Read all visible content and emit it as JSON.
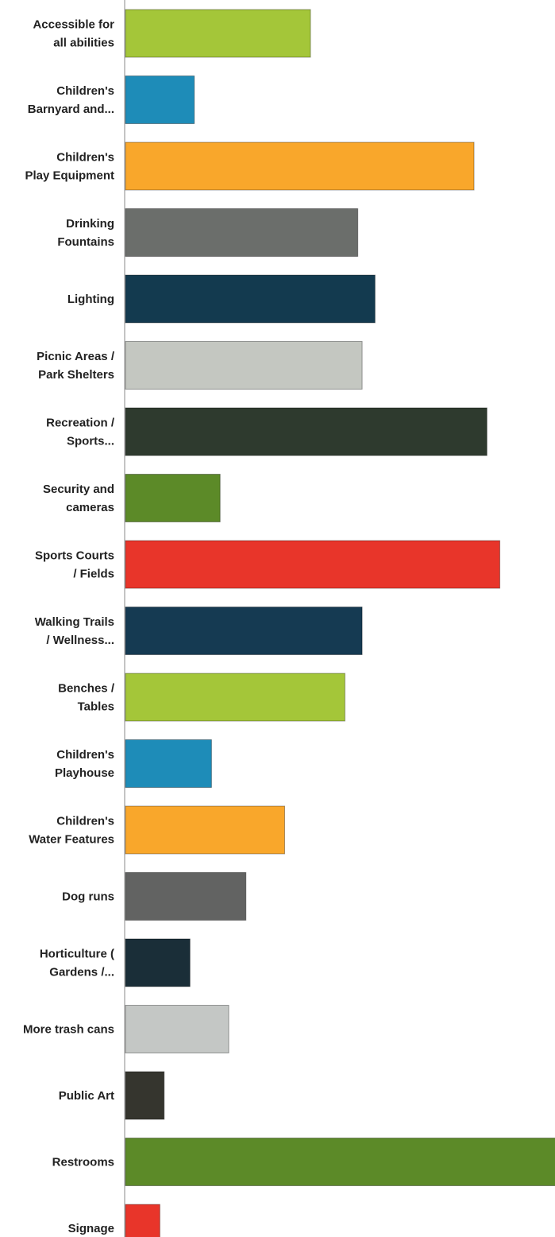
{
  "chart_data": {
    "type": "bar",
    "orientation": "horizontal",
    "title": "",
    "xlabel": "",
    "ylabel": "",
    "xlim": [
      0,
      100
    ],
    "grid": false,
    "legend": "none",
    "categories": [
      "Accessible for all abilities",
      "Children's Barnyard and...",
      "Children's Play Equipment",
      "Drinking Fountains",
      "Lighting",
      "Picnic Areas / Park Shelters",
      "Recreation / Sports...",
      "Security and cameras",
      "Sports Courts / Fields",
      "Walking Trails / Wellness...",
      "Benches / Tables",
      "Children's Playhouse",
      "Children's Water Features",
      "Dog runs",
      "Horticulture ( Gardens /...",
      "More trash cans",
      "Public Art",
      "Restrooms",
      "Signage"
    ],
    "labels": [
      [
        "Accessible for",
        "all abilities"
      ],
      [
        "Children's",
        "Barnyard and..."
      ],
      [
        "Children's",
        "Play Equipment"
      ],
      [
        "Drinking",
        "Fountains"
      ],
      [
        "Lighting"
      ],
      [
        "Picnic Areas /",
        "Park Shelters"
      ],
      [
        "Recreation /",
        "Sports..."
      ],
      [
        "Security and",
        "cameras"
      ],
      [
        "Sports Courts",
        "/ Fields"
      ],
      [
        "Walking Trails",
        "/ Wellness..."
      ],
      [
        "Benches /",
        "Tables"
      ],
      [
        "Children's",
        "Playhouse"
      ],
      [
        "Children's",
        "Water Features"
      ],
      [
        "Dog runs"
      ],
      [
        "Horticulture (",
        "Gardens /..."
      ],
      [
        "More trash cans"
      ],
      [
        "Public Art"
      ],
      [
        "Restrooms"
      ],
      [
        "Signage"
      ]
    ],
    "values": [
      43,
      16,
      81,
      54,
      58,
      55,
      84,
      22,
      87,
      55,
      51,
      20,
      37,
      28,
      15,
      24,
      9,
      100,
      8
    ],
    "colors": [
      "#a4c639",
      "#1e8cb8",
      "#f9a72b",
      "#6b6e6b",
      "#133a4f",
      "#c4c7c1",
      "#2e3a2e",
      "#5c8a28",
      "#e8352a",
      "#153a52",
      "#a4c639",
      "#1e8cb8",
      "#f9a72b",
      "#626362",
      "#1a2e38",
      "#c4c7c5",
      "#35352e",
      "#5c8a28",
      "#e8352a"
    ]
  }
}
